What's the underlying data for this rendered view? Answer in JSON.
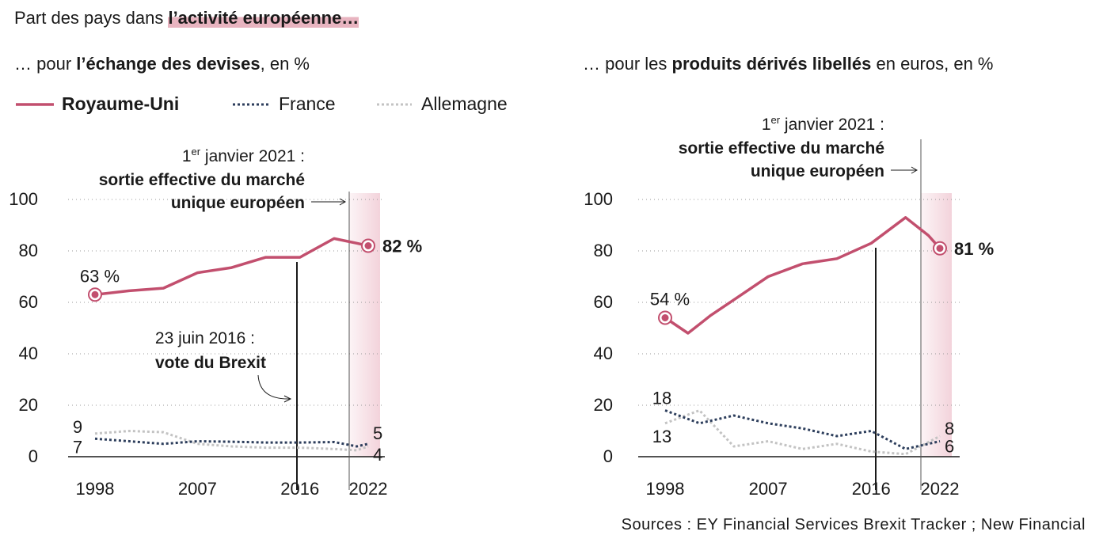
{
  "title": {
    "prefix": "Part des pays dans ",
    "highlight": "l’activité européenne…"
  },
  "legend": {
    "uk": "Royaume-Uni",
    "fr": "France",
    "de": "Allemagne"
  },
  "colors": {
    "uk": "#c24f6e",
    "fr": "#2d3e5c",
    "de": "#c3c3c3",
    "shade": "#f3d3db"
  },
  "source": "Sources : EY Financial Services Brexit Tracker ; New Financial",
  "chart_data": [
    {
      "type": "line",
      "subtitle": {
        "prefix": "… pour ",
        "bold": "l’échange des devises",
        "suffix": ", en %"
      },
      "ylim": [
        0,
        100
      ],
      "yticks": [
        "0",
        "20",
        "40",
        "60",
        "80",
        "100"
      ],
      "xticks": [
        "1998",
        "2007",
        "2016",
        "2022"
      ],
      "grid": true,
      "series": [
        {
          "name": "Royaume-Uni",
          "x": [
            1998,
            2001,
            2004,
            2007,
            2010,
            2013,
            2016,
            2019,
            2021,
            2022
          ],
          "values": [
            63,
            64.5,
            65.5,
            71.5,
            73.5,
            77.5,
            77.5,
            84.8,
            83,
            82
          ]
        },
        {
          "name": "France",
          "x": [
            1998,
            2001,
            2004,
            2007,
            2010,
            2013,
            2016,
            2019,
            2021,
            2022
          ],
          "values": [
            7,
            6,
            5,
            6,
            5.8,
            5.5,
            5.5,
            5.7,
            4,
            5
          ]
        },
        {
          "name": "Allemagne",
          "x": [
            1998,
            2001,
            2004,
            2007,
            2010,
            2013,
            2016,
            2019,
            2021,
            2022
          ],
          "values": [
            9,
            10,
            9.5,
            5,
            4,
            3.5,
            3.5,
            3,
            2.5,
            4
          ]
        }
      ],
      "labels": {
        "uk_start": "63 %",
        "uk_end": "82 %",
        "fr_start": "7",
        "de_start": "9",
        "fr_end": "5",
        "de_end": "4"
      },
      "annotations": {
        "exit_line1": "1er janvier 2021 :",
        "exit_line2": "sortie effective du marché",
        "exit_line3": "unique européen",
        "brexit_line1": "23 juin 2016 :",
        "brexit_line2": "vote du Brexit"
      }
    },
    {
      "type": "line",
      "subtitle": {
        "prefix": "… pour les ",
        "bold": "produits dérivés libellés",
        "suffix": " en euros, en %"
      },
      "ylim": [
        0,
        100
      ],
      "yticks": [
        "0",
        "20",
        "40",
        "60",
        "80",
        "100"
      ],
      "xticks": [
        "1998",
        "2007",
        "2016",
        "2022"
      ],
      "grid": true,
      "series": [
        {
          "name": "Royaume-Uni",
          "x": [
            1998,
            2000,
            2002,
            2004,
            2007,
            2010,
            2013,
            2016,
            2019,
            2021,
            2022
          ],
          "values": [
            54,
            48,
            55,
            61,
            70,
            75,
            77,
            83,
            93,
            86,
            81
          ]
        },
        {
          "name": "France",
          "x": [
            1998,
            2001,
            2004,
            2007,
            2010,
            2013,
            2016,
            2019,
            2022
          ],
          "values": [
            18,
            13,
            16,
            13,
            11,
            8,
            10,
            3,
            6
          ]
        },
        {
          "name": "Allemagne",
          "x": [
            1998,
            2001,
            2004,
            2007,
            2010,
            2013,
            2016,
            2019,
            2022
          ],
          "values": [
            13,
            18,
            4,
            6,
            3,
            5,
            2,
            1,
            8
          ]
        }
      ],
      "labels": {
        "uk_start": "54 %",
        "uk_end": "81 %",
        "fr_start": "18",
        "de_start": "13",
        "fr_end": "6",
        "de_end": "8"
      },
      "annotations": {
        "exit_line1": "1er janvier 2021 :",
        "exit_line2": "sortie effective du marché",
        "exit_line3": "unique européen"
      }
    }
  ]
}
